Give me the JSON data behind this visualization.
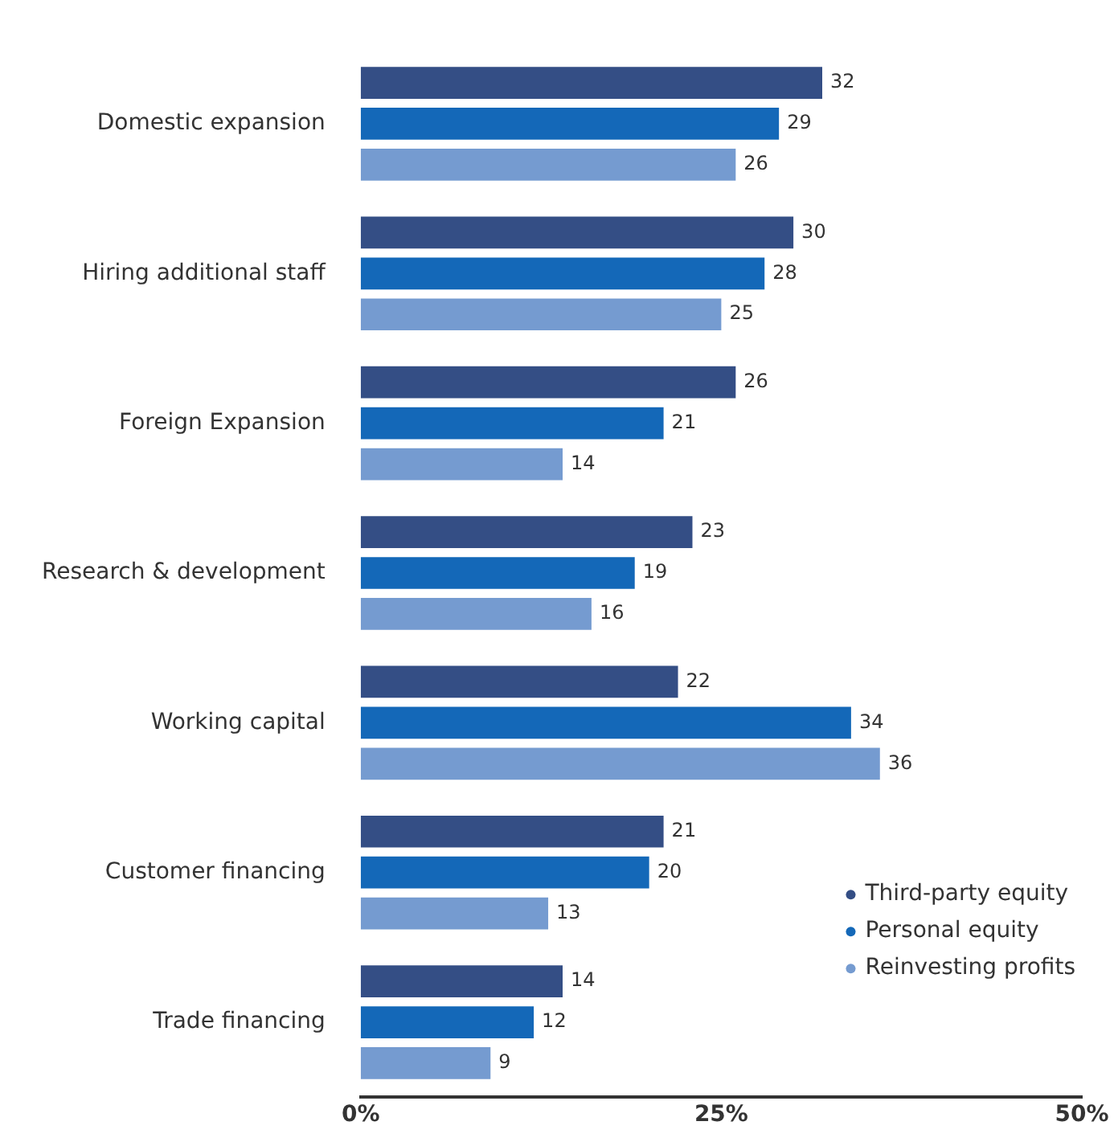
{
  "chart_data": {
    "type": "bar",
    "orientation": "horizontal",
    "categories": [
      "Domestic expansion",
      "Hiring additional staff",
      "Foreign Expansion",
      "Research & development",
      "Working capital",
      "Customer financing",
      "Trade financing"
    ],
    "series": [
      {
        "name": "Third-party equity",
        "color": "#344e85",
        "values": [
          32,
          30,
          26,
          23,
          22,
          21,
          14
        ]
      },
      {
        "name": "Personal equity",
        "color": "#1468b8",
        "values": [
          29,
          28,
          21,
          19,
          34,
          20,
          12
        ]
      },
      {
        "name": "Reinvesting profits",
        "color": "#759bd0",
        "values": [
          26,
          25,
          14,
          16,
          36,
          13,
          9
        ]
      }
    ],
    "xlim": [
      0,
      50
    ],
    "xticks": [
      {
        "value": 0,
        "label": "0%"
      },
      {
        "value": 25,
        "label": "25%"
      },
      {
        "value": 50,
        "label": "50%"
      }
    ],
    "grid": false,
    "legend": "bottom right",
    "marker": "circle",
    "data_labels": true
  }
}
